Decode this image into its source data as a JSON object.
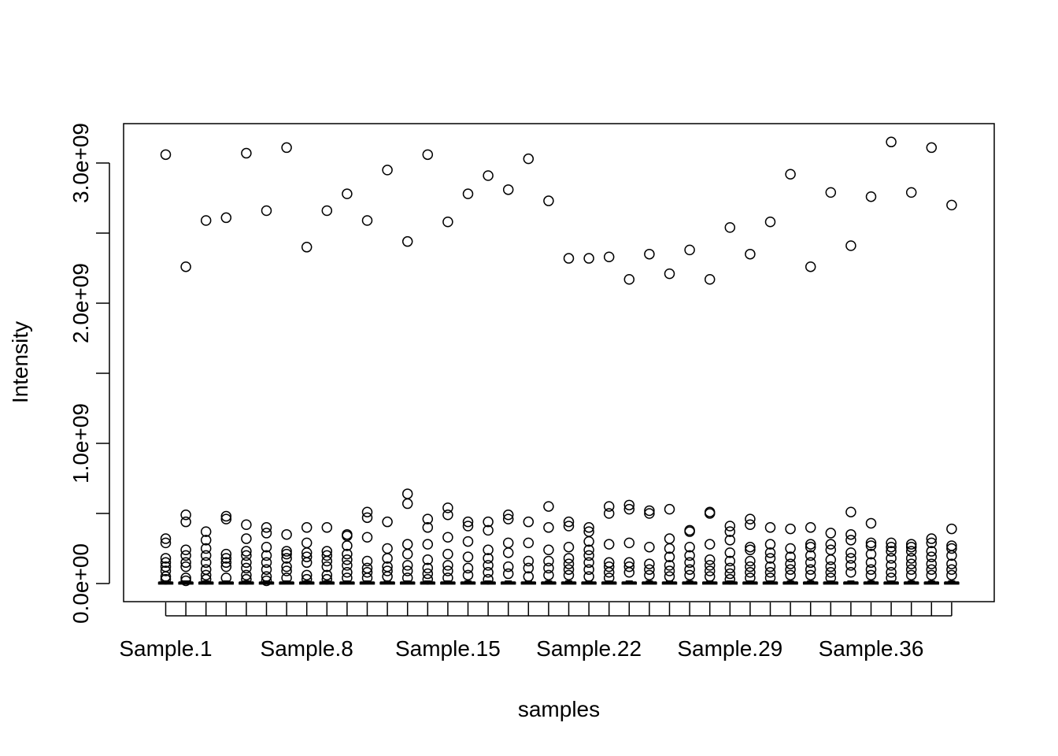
{
  "chart_data": {
    "type": "box",
    "title": "",
    "xlabel": "samples",
    "ylabel": "Intensity",
    "ylim": [
      -130000000,
      3270000000
    ],
    "y_ticks": [
      {
        "value": 0,
        "label": "0.0e+00"
      },
      {
        "value": 500000000,
        "label": ""
      },
      {
        "value": 1000000000,
        "label": "1.0e+09"
      },
      {
        "value": 1500000000,
        "label": ""
      },
      {
        "value": 2000000000,
        "label": "2.0e+09"
      },
      {
        "value": 2500000000,
        "label": ""
      },
      {
        "value": 3000000000,
        "label": "3.0e+09"
      }
    ],
    "sample_count": 40,
    "x_tick_labels": [
      {
        "index": 1,
        "label": "Sample.1"
      },
      {
        "index": 8,
        "label": "Sample.8"
      },
      {
        "index": 15,
        "label": "Sample.15"
      },
      {
        "index": 22,
        "label": "Sample.22"
      },
      {
        "index": 29,
        "label": "Sample.29"
      },
      {
        "index": 36,
        "label": "Sample.36"
      }
    ],
    "max_values": [
      3060000000,
      2260000000,
      2590000000,
      2610000000,
      3070000000,
      2660000000,
      3110000000,
      2400000000,
      2660000000,
      2780000000,
      2590000000,
      2950000000,
      2440000000,
      3060000000,
      2580000000,
      2780000000,
      2910000000,
      2810000000,
      3030000000,
      2730000000,
      2320000000,
      2320000000,
      2330000000,
      2170000000,
      2350000000,
      2210000000,
      2380000000,
      2170000000,
      2540000000,
      2350000000,
      2580000000,
      2920000000,
      2260000000,
      2790000000,
      2410000000,
      2760000000,
      3150000000,
      2790000000,
      3110000000,
      2700000000
    ],
    "outliers": [
      [
        320000000,
        290000000,
        180000000,
        150000000,
        120000000,
        90000000,
        50000000,
        30000000
      ],
      [
        490000000,
        440000000,
        240000000,
        200000000,
        150000000,
        120000000,
        40000000,
        20000000
      ],
      [
        370000000,
        310000000,
        250000000,
        200000000,
        150000000,
        100000000,
        60000000,
        30000000
      ],
      [
        480000000,
        460000000,
        210000000,
        180000000,
        150000000,
        120000000,
        40000000
      ],
      [
        420000000,
        320000000,
        230000000,
        200000000,
        150000000,
        110000000,
        60000000,
        30000000
      ],
      [
        400000000,
        360000000,
        260000000,
        200000000,
        150000000,
        100000000,
        50000000,
        20000000
      ],
      [
        350000000,
        230000000,
        210000000,
        180000000,
        120000000,
        90000000,
        40000000
      ],
      [
        400000000,
        290000000,
        220000000,
        190000000,
        150000000,
        60000000,
        30000000
      ],
      [
        400000000,
        230000000,
        200000000,
        160000000,
        120000000,
        60000000,
        30000000
      ],
      [
        350000000,
        340000000,
        270000000,
        210000000,
        170000000,
        130000000,
        80000000,
        40000000
      ],
      [
        510000000,
        470000000,
        330000000,
        160000000,
        110000000,
        80000000,
        40000000
      ],
      [
        440000000,
        250000000,
        180000000,
        120000000,
        90000000,
        50000000
      ],
      [
        640000000,
        570000000,
        280000000,
        210000000,
        130000000,
        90000000,
        40000000
      ],
      [
        460000000,
        400000000,
        280000000,
        170000000,
        110000000,
        70000000,
        30000000
      ],
      [
        540000000,
        490000000,
        330000000,
        210000000,
        130000000,
        90000000,
        40000000
      ],
      [
        440000000,
        410000000,
        300000000,
        190000000,
        110000000,
        60000000
      ],
      [
        440000000,
        380000000,
        240000000,
        180000000,
        130000000,
        80000000,
        30000000
      ],
      [
        490000000,
        460000000,
        290000000,
        220000000,
        120000000,
        70000000
      ],
      [
        440000000,
        290000000,
        160000000,
        110000000,
        50000000
      ],
      [
        550000000,
        400000000,
        240000000,
        160000000,
        110000000,
        60000000
      ],
      [
        440000000,
        410000000,
        260000000,
        180000000,
        140000000,
        100000000,
        60000000
      ],
      [
        400000000,
        370000000,
        300000000,
        240000000,
        200000000,
        150000000,
        100000000,
        50000000
      ],
      [
        550000000,
        500000000,
        280000000,
        150000000,
        120000000,
        80000000,
        40000000
      ],
      [
        560000000,
        530000000,
        290000000,
        150000000,
        120000000,
        80000000
      ],
      [
        520000000,
        500000000,
        260000000,
        140000000,
        100000000,
        60000000
      ],
      [
        530000000,
        320000000,
        250000000,
        190000000,
        130000000,
        90000000,
        50000000
      ],
      [
        380000000,
        370000000,
        260000000,
        200000000,
        150000000,
        100000000,
        60000000
      ],
      [
        510000000,
        500000000,
        280000000,
        170000000,
        130000000,
        90000000,
        50000000
      ],
      [
        410000000,
        370000000,
        310000000,
        220000000,
        160000000,
        110000000,
        70000000,
        30000000
      ],
      [
        460000000,
        420000000,
        260000000,
        240000000,
        160000000,
        120000000,
        80000000,
        40000000
      ],
      [
        400000000,
        280000000,
        220000000,
        180000000,
        120000000,
        80000000,
        40000000
      ],
      [
        390000000,
        250000000,
        190000000,
        140000000,
        100000000,
        60000000
      ],
      [
        400000000,
        280000000,
        260000000,
        200000000,
        150000000,
        100000000,
        60000000
      ],
      [
        360000000,
        280000000,
        240000000,
        170000000,
        120000000,
        80000000,
        40000000
      ],
      [
        510000000,
        350000000,
        310000000,
        220000000,
        180000000,
        130000000,
        80000000
      ],
      [
        430000000,
        290000000,
        270000000,
        210000000,
        150000000,
        100000000,
        60000000
      ],
      [
        290000000,
        260000000,
        230000000,
        180000000,
        130000000,
        80000000,
        40000000
      ],
      [
        280000000,
        260000000,
        230000000,
        180000000,
        140000000,
        100000000,
        60000000
      ],
      [
        320000000,
        290000000,
        230000000,
        190000000,
        140000000,
        100000000,
        60000000
      ],
      [
        390000000,
        270000000,
        250000000,
        200000000,
        140000000,
        100000000,
        60000000
      ]
    ],
    "box_values": {
      "min": 0,
      "q1": 2000000,
      "median": 4000000,
      "q3": 8000000,
      "whisker_high": 18000000
    },
    "grid": false,
    "legend": "none"
  }
}
